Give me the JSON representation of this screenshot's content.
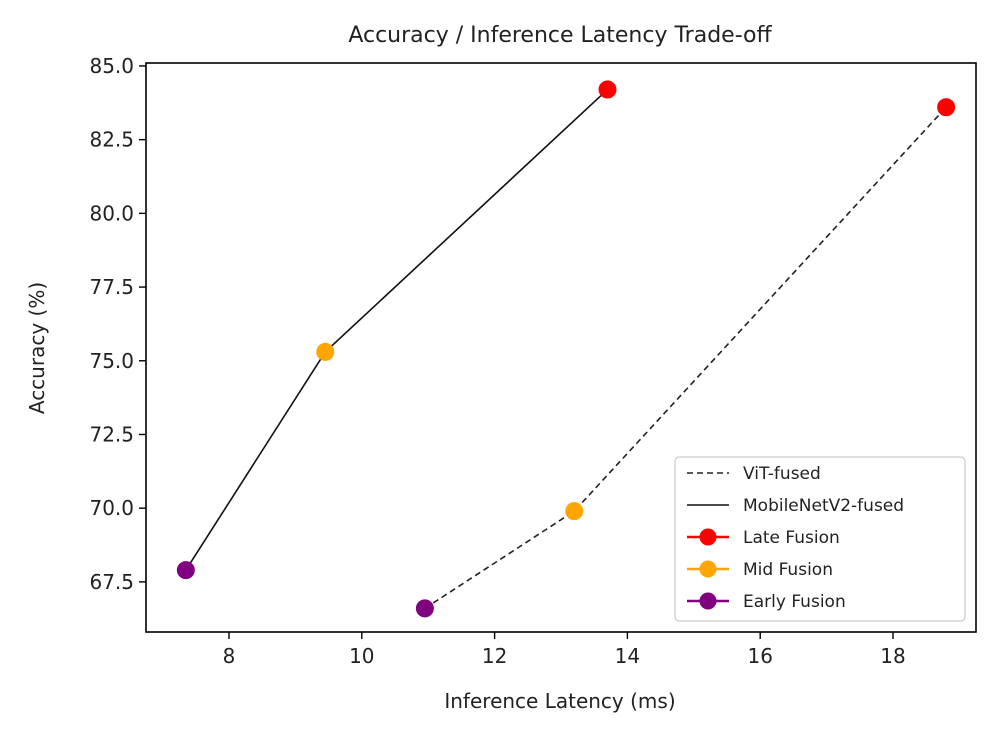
{
  "chart_data": {
    "type": "line",
    "title": "Accuracy / Inference Latency Trade-off",
    "xlabel": "Inference Latency (ms)",
    "ylabel": "Accuracy (%)",
    "xlim": [
      6.75,
      19.25
    ],
    "ylim": [
      65.8,
      85.1
    ],
    "xticks": [
      8,
      10,
      12,
      14,
      16,
      18
    ],
    "yticks": [
      67.5,
      70.0,
      72.5,
      75.0,
      77.5,
      80.0,
      82.5,
      85.0
    ],
    "xtick_labels": [
      "8",
      "10",
      "12",
      "14",
      "16",
      "18"
    ],
    "ytick_labels": [
      "67.5",
      "70.0",
      "72.5",
      "75.0",
      "77.5",
      "80.0",
      "82.5",
      "85.0"
    ],
    "grid": false,
    "legend_position": "bottom-right",
    "lines": [
      {
        "name": "ViT-fused",
        "style": "dashed",
        "color": "#222222",
        "points": [
          {
            "x": 10.95,
            "y": 66.6
          },
          {
            "x": 13.2,
            "y": 69.9
          },
          {
            "x": 18.8,
            "y": 83.6
          }
        ]
      },
      {
        "name": "MobileNetV2-fused",
        "style": "solid",
        "color": "#111111",
        "points": [
          {
            "x": 7.35,
            "y": 67.9
          },
          {
            "x": 9.45,
            "y": 75.3
          },
          {
            "x": 13.7,
            "y": 84.2
          }
        ]
      }
    ],
    "markers": [
      {
        "name": "Late Fusion",
        "color": "#ff0000",
        "points": [
          {
            "x": 13.7,
            "y": 84.2
          },
          {
            "x": 18.8,
            "y": 83.6
          }
        ]
      },
      {
        "name": "Mid Fusion",
        "color": "#ffa500",
        "points": [
          {
            "x": 9.45,
            "y": 75.3
          },
          {
            "x": 13.2,
            "y": 69.9
          }
        ]
      },
      {
        "name": "Early Fusion",
        "color": "#800080",
        "points": [
          {
            "x": 7.35,
            "y": 67.9
          },
          {
            "x": 10.95,
            "y": 66.6
          }
        ]
      }
    ],
    "legend": [
      {
        "label": "ViT-fused",
        "kind": "line",
        "style": "dashed",
        "color": "#222222"
      },
      {
        "label": "MobileNetV2-fused",
        "kind": "line",
        "style": "solid",
        "color": "#111111"
      },
      {
        "label": "Late Fusion",
        "kind": "marker",
        "color": "#ff0000"
      },
      {
        "label": "Mid Fusion",
        "kind": "marker",
        "color": "#ffa500"
      },
      {
        "label": "Early Fusion",
        "kind": "marker",
        "color": "#800080"
      }
    ]
  }
}
